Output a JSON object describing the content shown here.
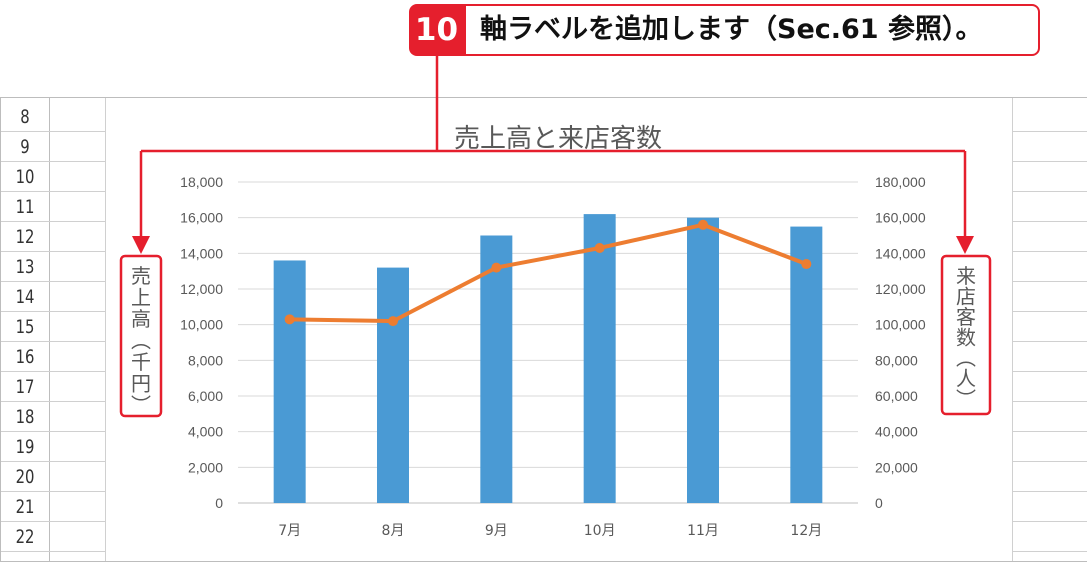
{
  "callout": {
    "number": "10",
    "text": "軸ラベルを追加します（Sec.61 参照）。"
  },
  "sheet": {
    "row_numbers": [
      "8",
      "9",
      "10",
      "11",
      "12",
      "13",
      "14",
      "15",
      "16",
      "17",
      "18",
      "19",
      "20",
      "21",
      "22"
    ]
  },
  "colors": {
    "accent_red": "#e51f2d",
    "bar_blue": "#4a9ad4",
    "line_orange": "#ed7d31",
    "gridline": "#d9d9d9"
  },
  "chart_data": {
    "type": "bar",
    "title": "売上高と来店客数",
    "categories": [
      "7月",
      "8月",
      "9月",
      "10月",
      "11月",
      "12月"
    ],
    "series": [
      {
        "type": "bar",
        "axis": "left",
        "values": [
          13600,
          13200,
          15000,
          16200,
          16000,
          15500
        ]
      },
      {
        "type": "line",
        "axis": "right",
        "values": [
          103000,
          102000,
          132000,
          143000,
          156000,
          134000
        ]
      }
    ],
    "y_left": {
      "label": "売上高（千円）",
      "min": 0,
      "max": 18000,
      "ticks": [
        "0",
        "2,000",
        "4,000",
        "6,000",
        "8,000",
        "10,000",
        "12,000",
        "14,000",
        "16,000",
        "18,000"
      ]
    },
    "y_right": {
      "label": "来店客数（人）",
      "min": 0,
      "max": 180000,
      "ticks": [
        "0",
        "20,000",
        "40,000",
        "60,000",
        "80,000",
        "100,000",
        "120,000",
        "140,000",
        "160,000",
        "180,000"
      ]
    },
    "grid": true
  }
}
